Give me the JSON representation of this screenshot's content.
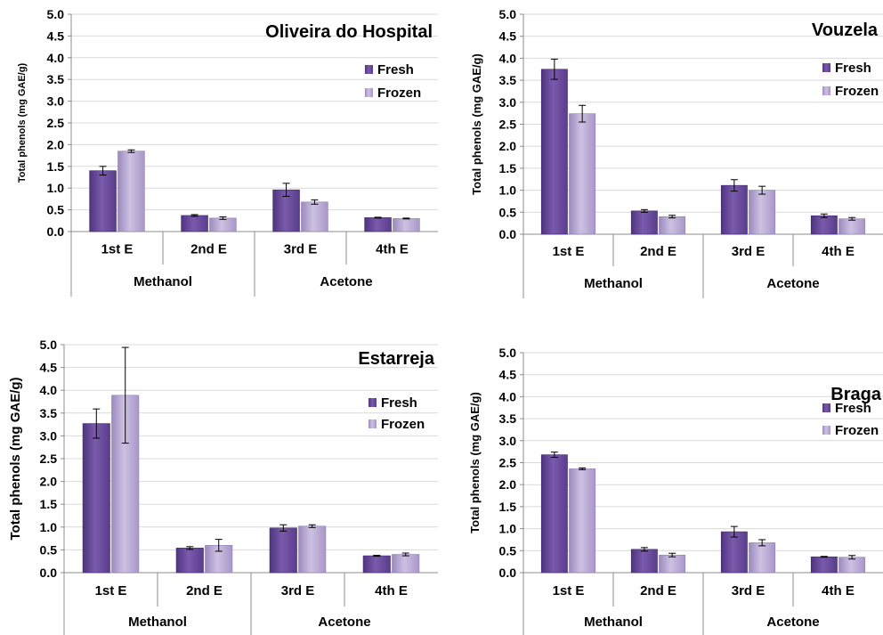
{
  "colors": {
    "fresh": "#6a4a9a",
    "fresh_light": "#8a6cb8",
    "frozen": "#b3a3cf",
    "frozen_light": "#cfc3e3",
    "grid": "#d9d9d9",
    "axis": "#8c8c8c"
  },
  "chart_data": [
    {
      "type": "bar",
      "title": "Oliveira do Hospital",
      "ylabel": "Total phenols (mg GAE/g)",
      "ylim": [
        0,
        5
      ],
      "yticks": [
        "0.0",
        "0.5",
        "1.0",
        "1.5",
        "2.0",
        "2.5",
        "3.0",
        "3.5",
        "4.0",
        "4.5",
        "5.0"
      ],
      "categories": [
        "1st E",
        "2nd E",
        "3rd E",
        "4th E"
      ],
      "groups": [
        "Methanol",
        "Acetone"
      ],
      "series": [
        {
          "name": "Fresh",
          "values": [
            1.4,
            0.37,
            0.96,
            0.32
          ],
          "errors": [
            0.1,
            0.02,
            0.15,
            0.01
          ]
        },
        {
          "name": "Frozen",
          "values": [
            1.85,
            0.31,
            0.68,
            0.3
          ],
          "errors": [
            0.03,
            0.03,
            0.05,
            0.01
          ]
        }
      ]
    },
    {
      "type": "bar",
      "title": "Vouzela",
      "ylabel": "Total phenols (mg GAE/g)",
      "ylim": [
        0,
        5
      ],
      "yticks": [
        "0.0",
        "0.5",
        "1.0",
        "1.5",
        "2.0",
        "2.5",
        "3.0",
        "3.5",
        "4.0",
        "4.5",
        "5.0"
      ],
      "categories": [
        "1st E",
        "2nd E",
        "3rd E",
        "4th E"
      ],
      "groups": [
        "Methanol",
        "Acetone"
      ],
      "series": [
        {
          "name": "Fresh",
          "values": [
            3.75,
            0.53,
            1.11,
            0.42
          ],
          "errors": [
            0.23,
            0.03,
            0.13,
            0.04
          ]
        },
        {
          "name": "Frozen",
          "values": [
            2.74,
            0.4,
            1.0,
            0.35
          ],
          "errors": [
            0.19,
            0.03,
            0.09,
            0.03
          ]
        }
      ]
    },
    {
      "type": "bar",
      "title": "Estarreja",
      "ylabel": "Total phenols (mg GAE/g)",
      "ylim": [
        0,
        5
      ],
      "yticks": [
        "0.0",
        "0.5",
        "1.0",
        "1.5",
        "2.0",
        "2.5",
        "3.0",
        "3.5",
        "4.0",
        "4.5",
        "5.0"
      ],
      "categories": [
        "1st E",
        "2nd E",
        "3rd E",
        "4th E"
      ],
      "groups": [
        "Methanol",
        "Acetone"
      ],
      "series": [
        {
          "name": "Fresh",
          "values": [
            3.27,
            0.54,
            0.98,
            0.37
          ],
          "errors": [
            0.32,
            0.03,
            0.07,
            0.01
          ]
        },
        {
          "name": "Frozen",
          "values": [
            3.89,
            0.6,
            1.02,
            0.4
          ],
          "errors": [
            1.05,
            0.13,
            0.03,
            0.03
          ]
        }
      ]
    },
    {
      "type": "bar",
      "title": "Braga",
      "ylabel": "Total phenols (mg GAE/g)",
      "ylim": [
        0,
        5
      ],
      "yticks": [
        "0.0",
        "0.5",
        "1.0",
        "1.5",
        "2.0",
        "2.5",
        "3.0",
        "3.5",
        "4.0",
        "4.5",
        "5.0"
      ],
      "categories": [
        "1st E",
        "2nd E",
        "3rd E",
        "4th E"
      ],
      "groups": [
        "Methanol",
        "Acetone"
      ],
      "series": [
        {
          "name": "Fresh",
          "values": [
            2.68,
            0.53,
            0.93,
            0.36
          ],
          "errors": [
            0.06,
            0.04,
            0.12,
            0.01
          ]
        },
        {
          "name": "Frozen",
          "values": [
            2.36,
            0.4,
            0.68,
            0.35
          ],
          "errors": [
            0.02,
            0.04,
            0.07,
            0.04
          ]
        }
      ]
    }
  ]
}
